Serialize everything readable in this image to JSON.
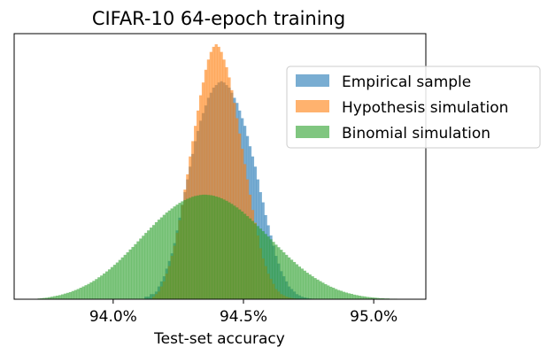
{
  "chart_data": {
    "type": "histogram",
    "title": "CIFAR-10 64-epoch training",
    "xlabel": "Test-set accuracy",
    "ylabel": "",
    "xlim": [
      93.62,
      95.2
    ],
    "x_ticks": [
      94.0,
      94.5,
      95.0
    ],
    "x_tick_labels": [
      "94.0%",
      "94.5%",
      "95.0%"
    ],
    "y_ticks": [],
    "grid": false,
    "legend_position": "upper-right",
    "overlapping": true,
    "bin_width": 0.01,
    "series": [
      {
        "name": "Empirical sample",
        "color": "#1f77b4",
        "alpha": 0.6,
        "bin_centers": [
          94.125,
          94.135,
          94.145,
          94.155,
          94.165,
          94.175,
          94.185,
          94.195,
          94.205,
          94.215,
          94.225,
          94.235,
          94.245,
          94.255,
          94.265,
          94.275,
          94.285,
          94.295,
          94.305,
          94.315,
          94.325,
          94.335,
          94.345,
          94.355,
          94.365,
          94.375,
          94.385,
          94.395,
          94.405,
          94.415,
          94.425,
          94.435,
          94.445,
          94.455,
          94.465,
          94.475,
          94.485,
          94.495,
          94.505,
          94.515,
          94.525,
          94.535,
          94.545,
          94.555,
          94.565,
          94.575,
          94.585,
          94.595,
          94.605,
          94.615,
          94.625,
          94.635,
          94.645,
          94.655,
          94.665,
          94.675,
          94.685,
          94.695,
          94.705,
          94.715,
          94.725,
          94.735,
          94.745,
          94.755,
          94.765,
          94.775,
          94.785,
          94.795
        ],
        "counts": [
          0.01,
          0.01,
          0.02,
          0.02,
          0.03,
          0.05,
          0.07,
          0.09,
          0.12,
          0.15,
          0.18,
          0.22,
          0.27,
          0.32,
          0.37,
          0.42,
          0.47,
          0.52,
          0.57,
          0.62,
          0.66,
          0.7,
          0.73,
          0.76,
          0.79,
          0.81,
          0.83,
          0.84,
          0.85,
          0.855,
          0.85,
          0.84,
          0.83,
          0.81,
          0.79,
          0.77,
          0.74,
          0.71,
          0.68,
          0.64,
          0.6,
          0.56,
          0.52,
          0.47,
          0.42,
          0.38,
          0.33,
          0.29,
          0.25,
          0.21,
          0.17,
          0.14,
          0.11,
          0.09,
          0.07,
          0.05,
          0.04,
          0.03,
          0.02,
          0.015,
          0.01,
          0.007,
          0.005,
          0.003,
          0.002,
          0.001,
          0.001,
          0.0
        ]
      },
      {
        "name": "Hypothesis simulation",
        "color": "#ff7f0e",
        "alpha": 0.6,
        "bin_centers": [
          94.155,
          94.165,
          94.175,
          94.185,
          94.195,
          94.205,
          94.215,
          94.225,
          94.235,
          94.245,
          94.255,
          94.265,
          94.275,
          94.285,
          94.295,
          94.305,
          94.315,
          94.325,
          94.335,
          94.345,
          94.355,
          94.365,
          94.375,
          94.385,
          94.395,
          94.405,
          94.415,
          94.425,
          94.435,
          94.445,
          94.455,
          94.465,
          94.475,
          94.485,
          94.495,
          94.505,
          94.515,
          94.525,
          94.535,
          94.545,
          94.555,
          94.565,
          94.575,
          94.585,
          94.595,
          94.605,
          94.615,
          94.625,
          94.635,
          94.645,
          94.655,
          94.665,
          94.675,
          94.685,
          94.695,
          94.705,
          94.715,
          94.725,
          94.735,
          94.745,
          94.755
        ],
        "counts": [
          0.01,
          0.02,
          0.03,
          0.05,
          0.07,
          0.1,
          0.13,
          0.17,
          0.21,
          0.26,
          0.31,
          0.37,
          0.43,
          0.49,
          0.56,
          0.62,
          0.68,
          0.74,
          0.8,
          0.85,
          0.9,
          0.94,
          0.97,
          0.99,
          1.0,
          0.99,
          0.97,
          0.94,
          0.91,
          0.87,
          0.82,
          0.77,
          0.71,
          0.65,
          0.59,
          0.53,
          0.47,
          0.41,
          0.35,
          0.3,
          0.25,
          0.2,
          0.16,
          0.13,
          0.1,
          0.08,
          0.06,
          0.04,
          0.03,
          0.02,
          0.015,
          0.01,
          0.007,
          0.005,
          0.003,
          0.002,
          0.001,
          0.001,
          0.0,
          0.0,
          0.0
        ]
      },
      {
        "name": "Binomial simulation",
        "color": "#2ca02c",
        "alpha": 0.6,
        "bin_centers": [
          93.715,
          93.725,
          93.735,
          93.745,
          93.755,
          93.765,
          93.775,
          93.785,
          93.795,
          93.805,
          93.815,
          93.825,
          93.835,
          93.845,
          93.855,
          93.865,
          93.875,
          93.885,
          93.895,
          93.905,
          93.915,
          93.925,
          93.935,
          93.945,
          93.955,
          93.965,
          93.975,
          93.985,
          93.995,
          94.005,
          94.015,
          94.025,
          94.035,
          94.045,
          94.055,
          94.065,
          94.075,
          94.085,
          94.095,
          94.105,
          94.115,
          94.125,
          94.135,
          94.145,
          94.155,
          94.165,
          94.175,
          94.185,
          94.195,
          94.205,
          94.215,
          94.225,
          94.235,
          94.245,
          94.255,
          94.265,
          94.275,
          94.285,
          94.295,
          94.305,
          94.315,
          94.325,
          94.335,
          94.345,
          94.355,
          94.365,
          94.375,
          94.385,
          94.395,
          94.405,
          94.415,
          94.425,
          94.435,
          94.445,
          94.455,
          94.465,
          94.475,
          94.485,
          94.495,
          94.505,
          94.515,
          94.525,
          94.535,
          94.545,
          94.555,
          94.565,
          94.575,
          94.585,
          94.595,
          94.605,
          94.615,
          94.625,
          94.635,
          94.645,
          94.655,
          94.665,
          94.675,
          94.685,
          94.695,
          94.705,
          94.715,
          94.725,
          94.735,
          94.745,
          94.755,
          94.765,
          94.775,
          94.785,
          94.795,
          94.805,
          94.815,
          94.825,
          94.835,
          94.845,
          94.855,
          94.865,
          94.875,
          94.885,
          94.895,
          94.905,
          94.915,
          94.925,
          94.935,
          94.945,
          94.955,
          94.965,
          94.975,
          94.985,
          94.995,
          95.005,
          95.015,
          95.025,
          95.035,
          95.045,
          95.055,
          95.065,
          95.075,
          95.085,
          95.095,
          95.105,
          95.115,
          95.125,
          95.135,
          95.145,
          95.155
        ],
        "counts": [
          0.003,
          0.004,
          0.005,
          0.006,
          0.008,
          0.01,
          0.012,
          0.014,
          0.016,
          0.019,
          0.022,
          0.025,
          0.028,
          0.032,
          0.036,
          0.04,
          0.045,
          0.05,
          0.055,
          0.06,
          0.066,
          0.072,
          0.079,
          0.086,
          0.093,
          0.101,
          0.109,
          0.117,
          0.126,
          0.135,
          0.144,
          0.154,
          0.164,
          0.174,
          0.184,
          0.195,
          0.205,
          0.216,
          0.227,
          0.238,
          0.249,
          0.26,
          0.27,
          0.281,
          0.291,
          0.302,
          0.312,
          0.321,
          0.331,
          0.34,
          0.348,
          0.356,
          0.364,
          0.371,
          0.378,
          0.384,
          0.389,
          0.394,
          0.398,
          0.402,
          0.405,
          0.407,
          0.409,
          0.41,
          0.41,
          0.409,
          0.408,
          0.406,
          0.403,
          0.4,
          0.396,
          0.391,
          0.386,
          0.38,
          0.374,
          0.367,
          0.36,
          0.352,
          0.344,
          0.335,
          0.326,
          0.317,
          0.307,
          0.297,
          0.287,
          0.277,
          0.267,
          0.256,
          0.246,
          0.235,
          0.225,
          0.214,
          0.204,
          0.194,
          0.184,
          0.174,
          0.164,
          0.155,
          0.146,
          0.137,
          0.128,
          0.12,
          0.112,
          0.104,
          0.097,
          0.09,
          0.083,
          0.077,
          0.071,
          0.065,
          0.059,
          0.054,
          0.049,
          0.045,
          0.04,
          0.036,
          0.033,
          0.029,
          0.026,
          0.023,
          0.021,
          0.018,
          0.016,
          0.014,
          0.012,
          0.011,
          0.009,
          0.008,
          0.007,
          0.006,
          0.005,
          0.004,
          0.004,
          0.003,
          0.003,
          0.002,
          0.002,
          0.002,
          0.001,
          0.001,
          0.001,
          0.001,
          0.001,
          0.0,
          0.0
        ]
      }
    ]
  }
}
